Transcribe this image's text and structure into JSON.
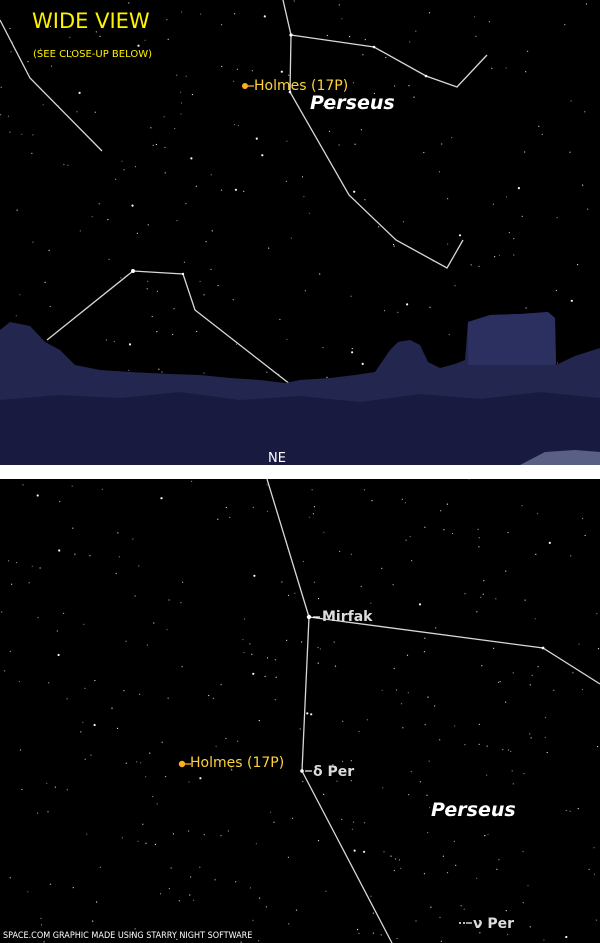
{
  "wide_view": {
    "title": "WIDE VIEW",
    "subtitle": "(SEE CLOSE-UP BELOW)",
    "comet_label": "Holmes (17P)",
    "constellation_label": "Perseus",
    "direction_label": "NE"
  },
  "close_up": {
    "comet_label": "Holmes (17P)",
    "constellation_label": "Perseus",
    "stars": [
      {
        "label": "Mirfak"
      },
      {
        "label": "δ Per"
      },
      {
        "label": "ν Per"
      }
    ]
  },
  "credit": "SPACE.COM GRAPHIC MADE USING STARRY NIGHT SOFTWARE",
  "colors": {
    "sky": "#000000",
    "constellation_lines": "#d8d8d8",
    "comet": "#ffb020",
    "label_yellow": "#fff200",
    "treeline": "#262a55"
  }
}
